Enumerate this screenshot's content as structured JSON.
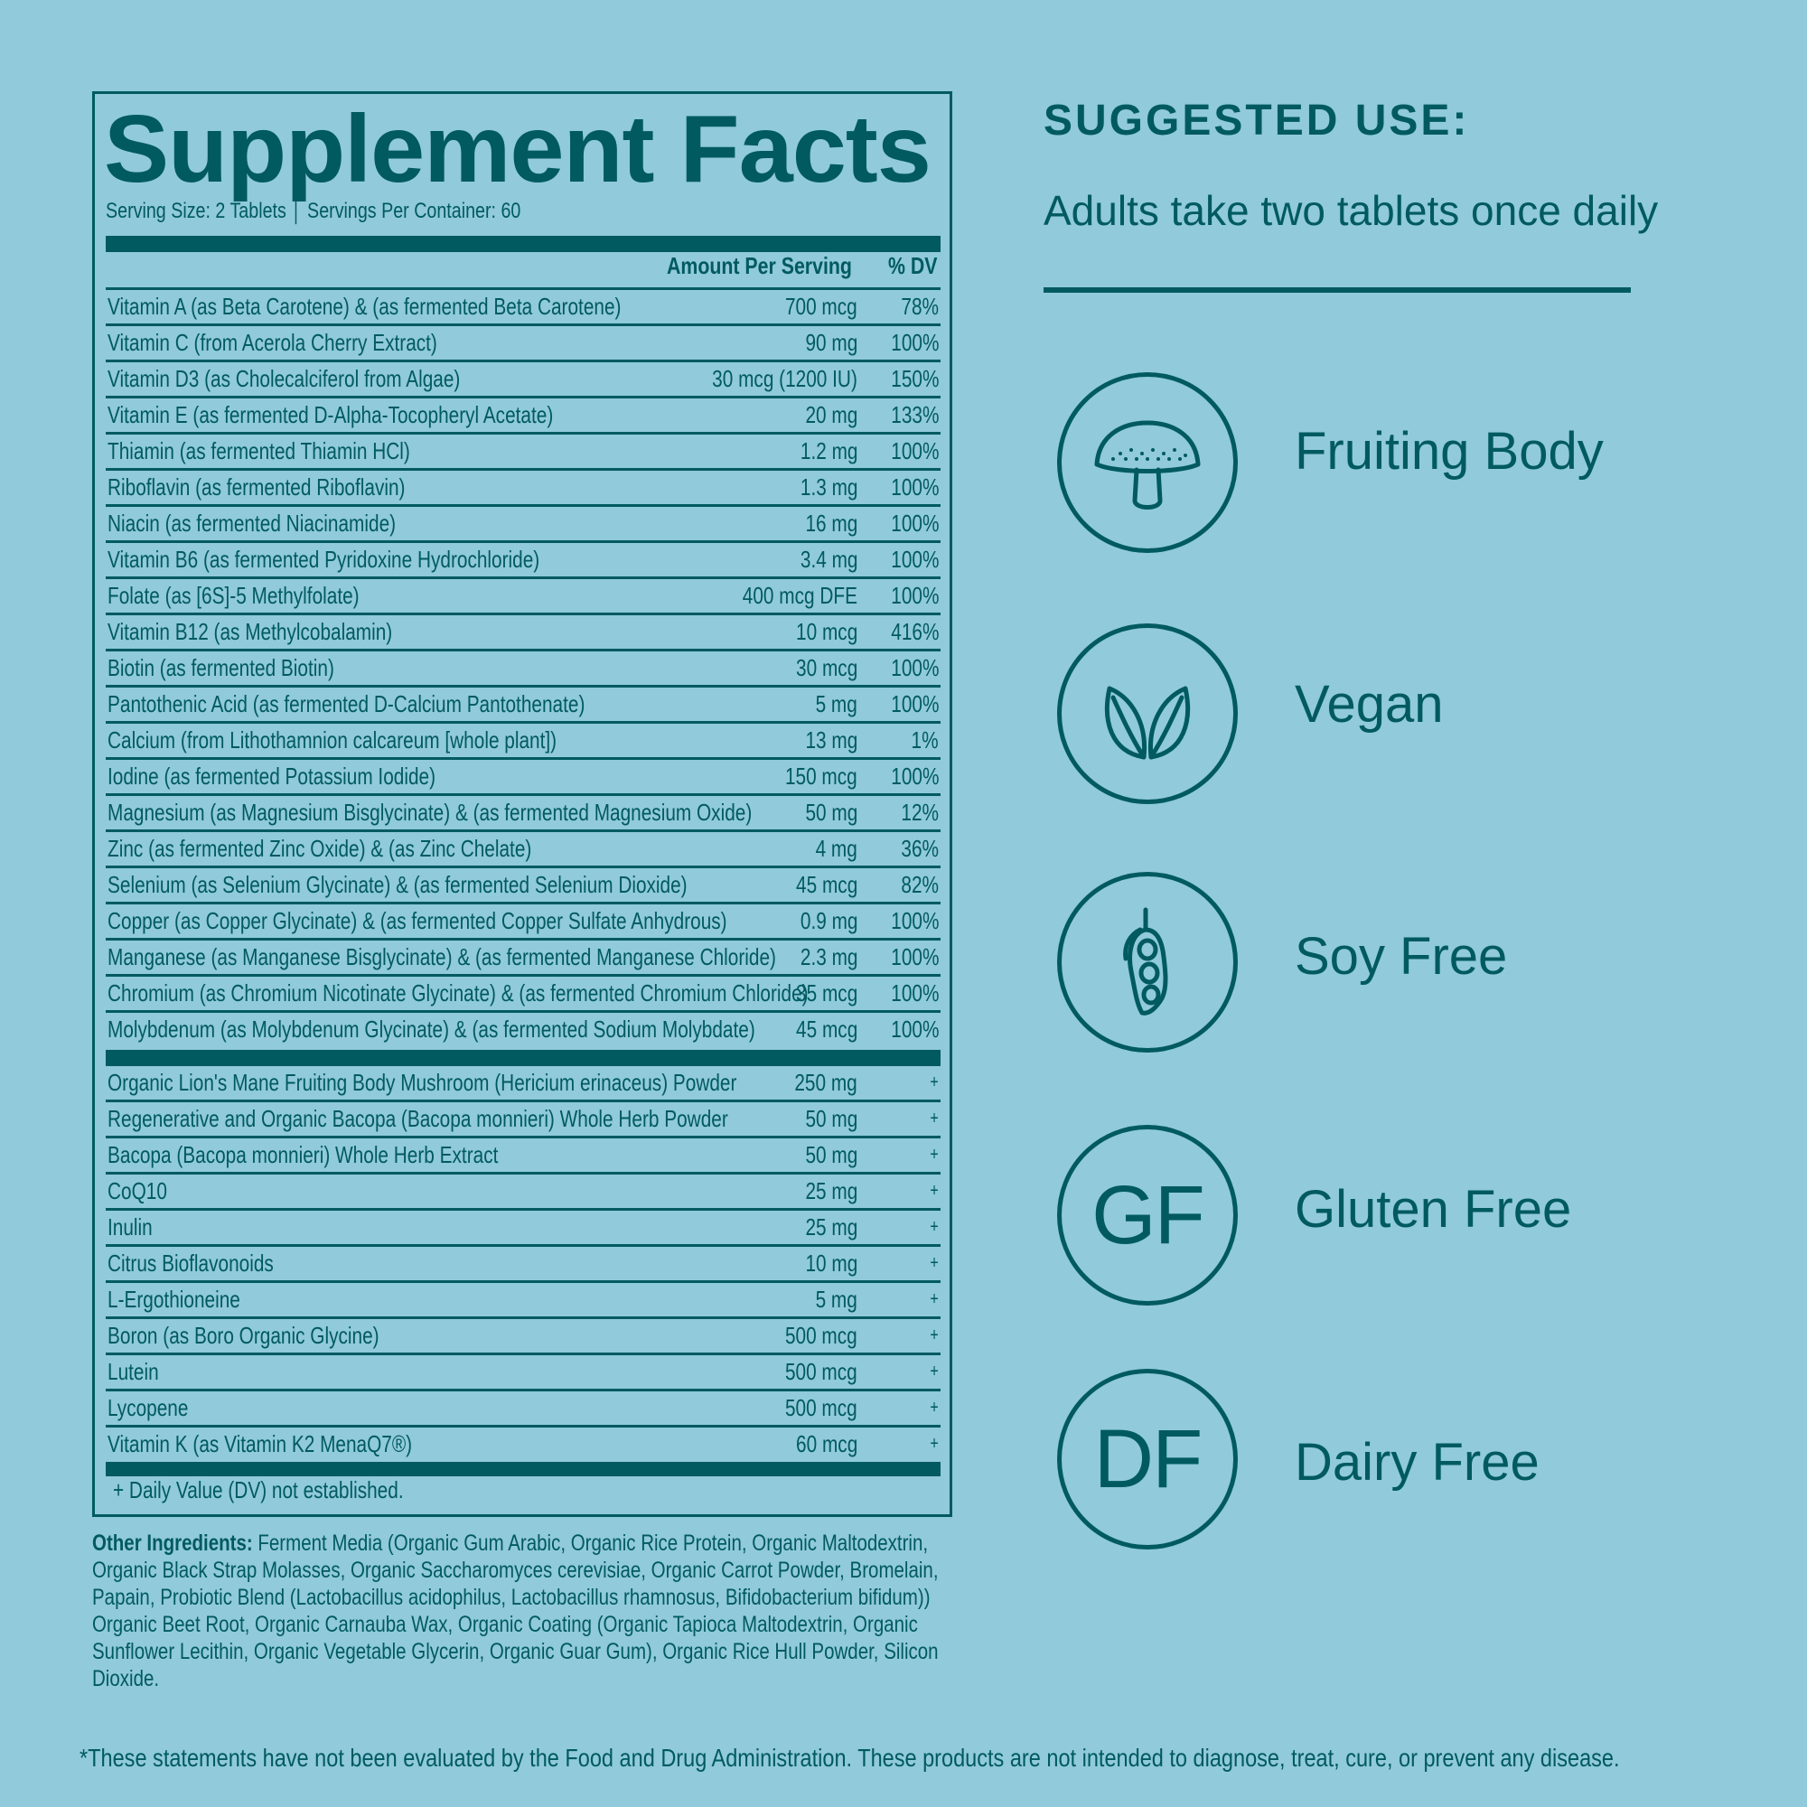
{
  "supplement_facts": {
    "title": "Supplement Facts",
    "serving_line": "Serving Size: 2 Tablets │ Servings Per Container: 60",
    "header_amount": "Amount Per Serving",
    "header_dv": "% DV",
    "vitamins": [
      {
        "name": "Vitamin A (as Beta Carotene) & (as fermented Beta Carotene)",
        "amount": "700 mcg",
        "dv": "78%"
      },
      {
        "name": "Vitamin C (from Acerola Cherry Extract)",
        "amount": "90 mg",
        "dv": "100%"
      },
      {
        "name": "Vitamin D3 (as Cholecalciferol from Algae)",
        "amount": "30 mcg (1200 IU)",
        "dv": "150%"
      },
      {
        "name": "Vitamin E (as fermented D-Alpha-Tocopheryl Acetate)",
        "amount": "20 mg",
        "dv": "133%"
      },
      {
        "name": "Thiamin (as fermented Thiamin HCl)",
        "amount": "1.2 mg",
        "dv": "100%"
      },
      {
        "name": "Riboflavin (as fermented Riboflavin)",
        "amount": "1.3 mg",
        "dv": "100%"
      },
      {
        "name": "Niacin (as fermented Niacinamide)",
        "amount": "16 mg",
        "dv": "100%"
      },
      {
        "name": "Vitamin B6 (as fermented Pyridoxine Hydrochloride)",
        "amount": "3.4 mg",
        "dv": "100%"
      },
      {
        "name": "Folate (as [6S]-5 Methylfolate)",
        "amount": "400 mcg DFE",
        "dv": "100%"
      },
      {
        "name": "Vitamin B12 (as Methylcobalamin)",
        "amount": "10 mcg",
        "dv": "416%"
      },
      {
        "name": "Biotin (as fermented Biotin)",
        "amount": "30 mcg",
        "dv": "100%"
      },
      {
        "name": "Pantothenic Acid (as fermented D-Calcium Pantothenate)",
        "amount": "5 mg",
        "dv": "100%"
      },
      {
        "name": "Calcium (from Lithothamnion calcareum [whole plant])",
        "amount": "13 mg",
        "dv": "1%"
      },
      {
        "name": "Iodine (as fermented Potassium Iodide)",
        "amount": "150 mcg",
        "dv": "100%"
      },
      {
        "name": "Magnesium (as Magnesium Bisglycinate) &  (as fermented Magnesium Oxide)",
        "amount": "50 mg",
        "dv": "12%"
      },
      {
        "name": "Zinc (as fermented Zinc Oxide) & (as Zinc Chelate)",
        "amount": "4 mg",
        "dv": "36%"
      },
      {
        "name": "Selenium (as Selenium Glycinate) &  (as fermented Selenium Dioxide)",
        "amount": "45 mcg",
        "dv": "82%"
      },
      {
        "name": "Copper (as Copper Glycinate) & (as fermented Copper Sulfate Anhydrous)",
        "amount": "0.9 mg",
        "dv": "100%"
      },
      {
        "name": "Manganese (as Manganese Bisglycinate) & (as fermented Manganese Chloride)",
        "amount": "2.3 mg",
        "dv": "100%"
      },
      {
        "name": "Chromium (as Chromium Nicotinate Glycinate) & (as fermented Chromium Chloride)",
        "amount": "35 mcg",
        "dv": "100%"
      },
      {
        "name": "Molybdenum (as Molybdenum Glycinate) & (as fermented Sodium Molybdate)",
        "amount": "45 mcg",
        "dv": "100%"
      }
    ],
    "other_actives": [
      {
        "name": "Organic Lion's Mane Fruiting Body Mushroom (Hericium erinaceus) Powder",
        "amount": "250 mg",
        "dv": "+"
      },
      {
        "name": "Regenerative and Organic Bacopa (Bacopa monnieri) Whole Herb Powder",
        "amount": "50 mg",
        "dv": "+"
      },
      {
        "name": "Bacopa (Bacopa monnieri) Whole Herb Extract",
        "amount": "50 mg",
        "dv": "+"
      },
      {
        "name": "CoQ10",
        "amount": "25 mg",
        "dv": "+"
      },
      {
        "name": "Inulin",
        "amount": "25 mg",
        "dv": "+"
      },
      {
        "name": "Citrus Bioflavonoids",
        "amount": "10 mg",
        "dv": "+"
      },
      {
        "name": "L-Ergothioneine",
        "amount": "5 mg",
        "dv": "+"
      },
      {
        "name": "Boron (as Boro Organic Glycine)",
        "amount": "500 mcg",
        "dv": "+"
      },
      {
        "name": "Lutein",
        "amount": "500 mcg",
        "dv": "+"
      },
      {
        "name": "Lycopene",
        "amount": "500 mcg",
        "dv": "+"
      },
      {
        "name": "Vitamin K (as Vitamin K2 MenaQ7®)",
        "amount": "60 mcg",
        "dv": "+"
      }
    ],
    "footnote": "+ Daily Value (DV) not established."
  },
  "other_ingredients": {
    "label": "Other Ingredients:",
    "text": "Ferment Media (Organic Gum Arabic, Organic Rice Protein, Organic Maltodextrin, Organic Black Strap Molasses, Organic Saccharomyces cerevisiae, Organic Carrot Powder, Bromelain, Papain, Probiotic Blend (Lactobacillus acidophilus, Lactobacillus rhamnosus, Bifidobacterium bifidum)) Organic Beet Root, Organic Carnauba Wax, Organic Coating (Organic Tapioca Maltodextrin, Organic Sunflower Lecithin, Organic Vegetable Glycerin, Organic Guar Gum), Organic Rice Hull Powder, Silicon Dioxide."
  },
  "disclaimer": "*These statements have not been evaluated by the Food and Drug Administration. These products are not intended to diagnose, treat, cure, or prevent any disease.",
  "suggested_use": {
    "heading": "SUGGESTED USE:",
    "text": "Adults take two tablets once daily"
  },
  "badges": [
    {
      "icon": "mushroom-icon",
      "label": "Fruiting Body"
    },
    {
      "icon": "leaves-icon",
      "label": "Vegan"
    },
    {
      "icon": "soybean-icon",
      "label": "Soy Free"
    },
    {
      "icon": "gf-icon",
      "letters": "GF",
      "label": "Gluten Free"
    },
    {
      "icon": "df-icon",
      "letters": "DF",
      "label": "Dairy Free"
    }
  ],
  "colors": {
    "background": "#90cadb",
    "ink": "#005a60"
  }
}
